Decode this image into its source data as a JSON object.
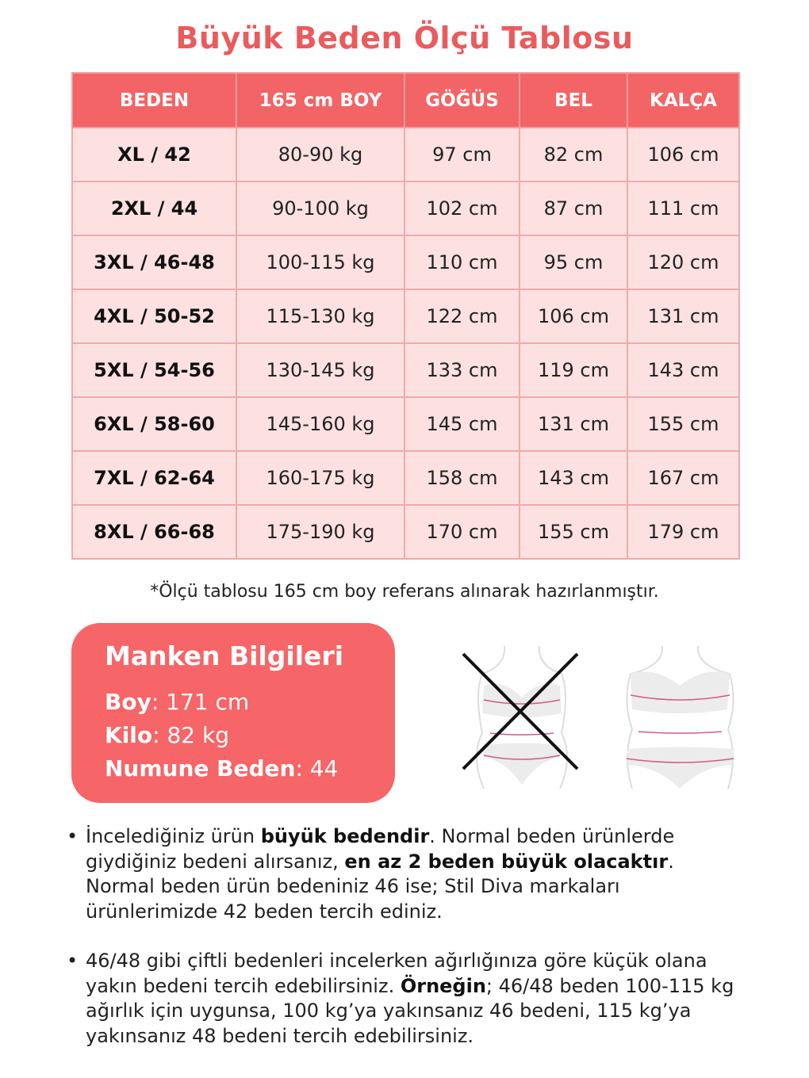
{
  "title": "Büyük Beden Ölçü Tablosu",
  "colors": {
    "accent": "#f26466",
    "title": "#ea5b5d",
    "row_bg": "#fde1e1",
    "border": "#f1a9a9",
    "box": "#f66567"
  },
  "table": {
    "headers": [
      "BEDEN",
      "165 cm BOY",
      "GÖĞÜS",
      "BEL",
      "KALÇA"
    ],
    "rows": [
      [
        "XL / 42",
        "80-90 kg",
        "97 cm",
        "82 cm",
        "106 cm"
      ],
      [
        "2XL / 44",
        "90-100 kg",
        "102 cm",
        "87 cm",
        "111 cm"
      ],
      [
        "3XL / 46-48",
        "100-115 kg",
        "110 cm",
        "95 cm",
        "120 cm"
      ],
      [
        "4XL / 50-52",
        "115-130 kg",
        "122 cm",
        "106 cm",
        "131 cm"
      ],
      [
        "5XL / 54-56",
        "130-145 kg",
        "133 cm",
        "119 cm",
        "143 cm"
      ],
      [
        "6XL / 58-60",
        "145-160 kg",
        "145 cm",
        "131 cm",
        "155 cm"
      ],
      [
        "7XL / 62-64",
        "160-175 kg",
        "158 cm",
        "143 cm",
        "167 cm"
      ],
      [
        "8XL / 66-68",
        "175-190 kg",
        "170 cm",
        "155 cm",
        "179 cm"
      ]
    ]
  },
  "note": "*Ölçü tablosu 165 cm boy referans alınarak hazırlanmıştır.",
  "manken": {
    "title": "Manken Bilgileri",
    "items": [
      {
        "label": "Boy",
        "value": ": 171 cm"
      },
      {
        "label": "Kilo",
        "value": ": 82 kg"
      },
      {
        "label": "Numune Beden",
        "value": ": 44"
      }
    ]
  },
  "figures": [
    {
      "icon": "body-measure-wrong-icon",
      "crossed": true
    },
    {
      "icon": "body-measure-correct-icon",
      "crossed": false
    }
  ],
  "bullets": [
    [
      {
        "text": "İncelediğiniz ürün ",
        "bold": false
      },
      {
        "text": "büyük bedendir",
        "bold": true
      },
      {
        "text": ". Normal beden ürünlerde giydiğiniz bedeni alırsanız, ",
        "bold": false
      },
      {
        "text": "en az 2 beden büyük olacaktır",
        "bold": true
      },
      {
        "text": ". Normal beden ürün bedeniniz 46 ise; Stil Diva markaları ürünlerimizde 42 beden tercih ediniz.",
        "bold": false
      }
    ],
    [
      {
        "text": "46/48 gibi çiftli bedenleri incelerken ağırlığınıza göre küçük olana yakın bedeni tercih edebilirsiniz. ",
        "bold": false
      },
      {
        "text": "Örneğin",
        "bold": true
      },
      {
        "text": "; 46/48 beden 100-115 kg ağırlık için uygunsa, 100 kg’ya yakınsanız 46 bedeni, 115 kg’ya yakınsanız 48 bedeni tercih edebilirsiniz.",
        "bold": false
      }
    ]
  ]
}
